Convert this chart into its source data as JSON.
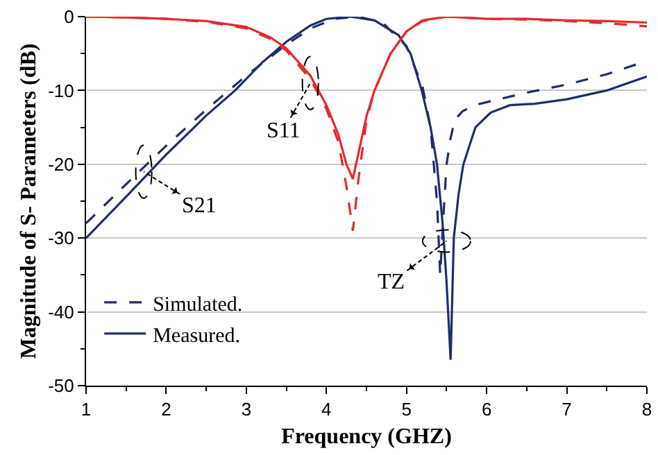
{
  "chart_data": {
    "type": "line",
    "xlabel": "Frequency (GHZ)",
    "ylabel": "Magnitude of S- Parameters (dB)",
    "xlim": [
      1,
      8
    ],
    "xticks": [
      1,
      2,
      3,
      4,
      5,
      6,
      7,
      8
    ],
    "ylim": [
      -50,
      0
    ],
    "yticks": [
      -50,
      -40,
      -30,
      -20,
      -10,
      0
    ],
    "grid": "y",
    "legend": "bottom left",
    "marker": "none",
    "annotations": [
      {
        "text": "S11",
        "x": 3.8,
        "y": -9
      },
      {
        "text": "S21",
        "x": 1.72,
        "y": -21
      },
      {
        "text": "TZ",
        "x": 5.5,
        "y": -30.4
      }
    ],
    "series": [
      {
        "name": "Simulated.",
        "color": "#1f2d6b",
        "line_style": "dashed",
        "x": [
          1,
          1.5,
          2,
          2.5,
          3,
          3.5,
          3.8,
          4.1,
          4.4,
          4.7,
          5,
          5.2,
          5.3,
          5.38,
          5.42,
          5.46,
          5.5,
          5.55,
          5.6,
          5.7,
          5.85,
          6.07,
          6.5,
          7,
          7.5,
          8
        ],
        "values": [
          -28,
          -22.7,
          -17.5,
          -12.6,
          -8,
          -3.8,
          -1.6,
          -0.3,
          0,
          -0.8,
          -4,
          -9.5,
          -15,
          -25,
          -35,
          -27,
          -20,
          -16.5,
          -14,
          -12.8,
          -12,
          -11.4,
          -10.3,
          -9.2,
          -7.8,
          -6
        ]
      },
      {
        "name": "Measured.",
        "color": "#1f2d6b",
        "line_style": "solid",
        "x": [
          1,
          1.5,
          2,
          2.5,
          2.86,
          3.2,
          3.5,
          3.8,
          4,
          4.3,
          4.6,
          4.9,
          5.05,
          5.19,
          5.3,
          5.38,
          5.45,
          5.5,
          5.55,
          5.59,
          5.65,
          5.71,
          5.86,
          6.05,
          6.29,
          6.6,
          7,
          7.5,
          8
        ],
        "values": [
          -30,
          -24.4,
          -18.7,
          -13.4,
          -10,
          -6.2,
          -3.4,
          -1.2,
          -0.3,
          0,
          -0.5,
          -2.5,
          -5,
          -10,
          -15,
          -20,
          -28,
          -36,
          -46.5,
          -30,
          -24,
          -20,
          -15,
          -13,
          -12,
          -11.8,
          -11.2,
          -10,
          -8.1
        ]
      },
      {
        "color": "#e8282b",
        "line_style": "dashed",
        "x": [
          1,
          1.5,
          2,
          2.5,
          3,
          3.3,
          3.5,
          3.8,
          4,
          4.15,
          4.25,
          4.33,
          4.4,
          4.5,
          4.6,
          4.8,
          5,
          5.2,
          5.5,
          6,
          6.5,
          7,
          7.5,
          8
        ],
        "values": [
          0,
          -0.1,
          -0.3,
          -0.7,
          -1.6,
          -3,
          -4.6,
          -8.5,
          -12.5,
          -17,
          -23,
          -29,
          -22,
          -14,
          -10,
          -5,
          -2,
          -0.6,
          0,
          -0.3,
          -0.4,
          -0.6,
          -0.9,
          -1.3
        ]
      },
      {
        "color": "#e8282b",
        "line_style": "solid",
        "x": [
          1,
          1.5,
          2,
          2.5,
          3,
          3.3,
          3.5,
          3.8,
          4,
          4.15,
          4.25,
          4.33,
          4.4,
          4.5,
          4.6,
          4.8,
          5,
          5.2,
          5.5,
          6,
          6.5,
          7,
          7.5,
          8
        ],
        "values": [
          0,
          -0.1,
          -0.3,
          -0.6,
          -1.4,
          -2.8,
          -4.3,
          -8,
          -12,
          -16,
          -20,
          -22,
          -18.5,
          -13.5,
          -10,
          -5,
          -2,
          -0.5,
          0,
          -0.3,
          -0.3,
          -0.5,
          -0.6,
          -0.8
        ]
      }
    ]
  }
}
